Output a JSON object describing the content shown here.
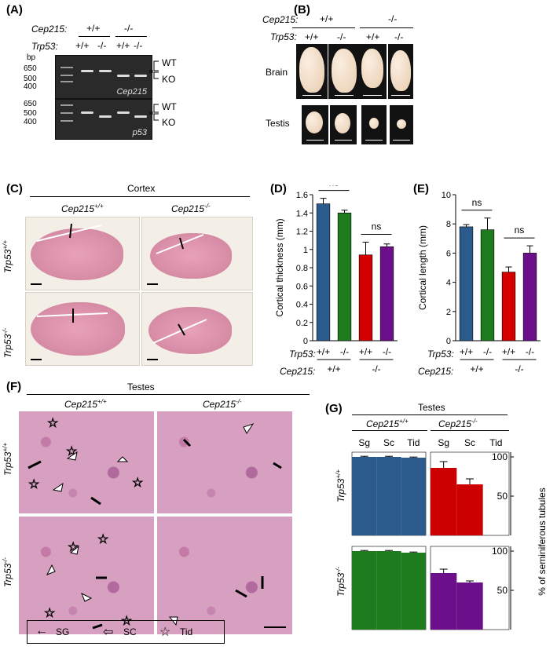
{
  "panels": {
    "A": "(A)",
    "B": "(B)",
    "C": "(C)",
    "D": "(D)",
    "E": "(E)",
    "F": "(F)",
    "G": "(G)"
  },
  "genes": {
    "cep215": "Cep215:",
    "trp53": "Trp53:",
    "cep215_name": "Cep215",
    "trp53_name": "Trp53"
  },
  "genotypes": {
    "wt": "+/+",
    "ko": "-/-",
    "sup_wt": "+/+",
    "sup_ko": "-/-"
  },
  "gel": {
    "bp": "bp",
    "top_markers": [
      "650",
      "500",
      "400"
    ],
    "bottom_markers": [
      "650",
      "500",
      "400"
    ],
    "wt": "WT",
    "ko": "KO",
    "top_name": "Cep215",
    "bottom_name": "p53"
  },
  "organs": {
    "brain": "Brain",
    "testis": "Testis"
  },
  "cortex": {
    "title": "Cortex"
  },
  "testes_title": "Testes",
  "legend": {
    "sg": "SG",
    "sc": "SC",
    "tid": "Tid"
  },
  "chart_data": [
    {
      "type": "bar",
      "panel": "D",
      "ylabel": "Cortical thickness (mm)",
      "ylim": [
        0,
        1.6
      ],
      "yticks": [
        "0",
        "0.2",
        "0.4",
        "0.6",
        "0.8",
        "1",
        "1.2",
        "1.4",
        "1.6"
      ],
      "trp53": [
        "+/+",
        "-/-",
        "+/+",
        "-/-"
      ],
      "cep215": [
        "+/+",
        "-/-"
      ],
      "values": [
        1.5,
        1.4,
        0.94,
        1.03
      ],
      "errors": [
        0.06,
        0.03,
        0.14,
        0.03
      ],
      "colors": [
        "#2b5a8c",
        "#1e7b1e",
        "#d40000",
        "#6b0f8a"
      ],
      "sig": [
        "ns",
        "ns"
      ]
    },
    {
      "type": "bar",
      "panel": "E",
      "ylabel": "Cortical length (mm)",
      "ylim": [
        0,
        10
      ],
      "yticks": [
        "0",
        "2",
        "4",
        "6",
        "8",
        "10"
      ],
      "trp53": [
        "+/+",
        "-/-",
        "+/+",
        "-/-"
      ],
      "cep215": [
        "+/+",
        "-/-"
      ],
      "values": [
        7.8,
        7.6,
        4.7,
        6.0
      ],
      "errors": [
        0.15,
        0.8,
        0.35,
        0.5
      ],
      "colors": [
        "#2b5a8c",
        "#1e7b1e",
        "#d40000",
        "#6b0f8a"
      ],
      "sig": [
        "ns",
        "ns"
      ]
    },
    {
      "type": "bar",
      "panel": "G",
      "title": "Testes",
      "ylabel": "% of seminiferous tubules",
      "ylim": [
        0,
        100
      ],
      "yticks": [
        "100",
        "50"
      ],
      "categories": [
        "Sg",
        "Sc",
        "Tid"
      ],
      "series": [
        {
          "values": [
            100,
            100,
            99
          ],
          "color": "#2b5a8c"
        },
        {
          "values": [
            86,
            65,
            0
          ],
          "errors": [
            8,
            7,
            0
          ],
          "color": "#cc0000"
        },
        {
          "values": [
            100,
            100,
            98
          ],
          "color": "#1e7b1e"
        },
        {
          "values": [
            72,
            60,
            0
          ],
          "errors": [
            5,
            2,
            0
          ],
          "color": "#6b0f8a"
        }
      ]
    }
  ]
}
